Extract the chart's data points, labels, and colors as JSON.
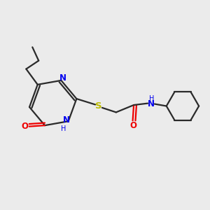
{
  "bg_color": "#ebebeb",
  "bond_color": "#2a2a2a",
  "N_color": "#0000ee",
  "O_color": "#ee0000",
  "S_color": "#bbbb00",
  "line_width": 1.6,
  "font_size": 8.5,
  "xlim": [
    0,
    10
  ],
  "ylim": [
    0,
    10
  ]
}
